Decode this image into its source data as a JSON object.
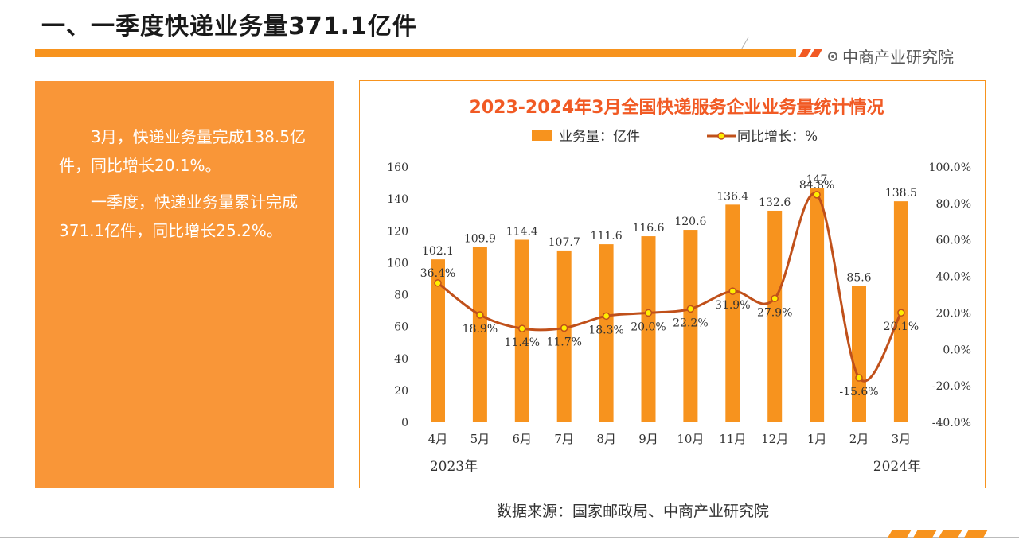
{
  "header": {
    "title": "一、一季度快递业务量371.1亿件",
    "brand": "中商产业研究院"
  },
  "summary": {
    "para1": "3月，快递业务量完成138.5亿件，同比增长20.1%。",
    "para2": "一季度，快递业务量累计完成371.1亿件，同比增长25.2%。"
  },
  "source": "数据来源：国家邮政局、中商产业研究院",
  "colors": {
    "accent": "#f7931e",
    "bar": "#f7931e",
    "line": "#c0501a",
    "marker_fill": "#ffee00",
    "title_color": "#f15a24"
  },
  "chart_data": {
    "type": "bar",
    "title": "2023-2024年3月全国快递服务企业业务量统计情况",
    "categories": [
      "4月",
      "5月",
      "6月",
      "7月",
      "8月",
      "9月",
      "10月",
      "11月",
      "12月",
      "1月",
      "2月",
      "3月"
    ],
    "year_labels": [
      {
        "label": "2023年",
        "category": "4月"
      },
      {
        "label": "2024年",
        "category": "3月"
      }
    ],
    "series": [
      {
        "name": "业务量：亿件",
        "type": "bar",
        "axis": "left",
        "values": [
          102.1,
          109.9,
          114.4,
          107.7,
          111.6,
          116.6,
          120.6,
          136.4,
          132.6,
          147,
          85.6,
          138.5
        ],
        "labels": [
          "102.1",
          "109.9",
          "114.4",
          "107.7",
          "111.6",
          "116.6",
          "120.6",
          "136.4",
          "132.6",
          "147",
          "85.6",
          "138.5"
        ]
      },
      {
        "name": "同比增长：%",
        "type": "line",
        "axis": "right",
        "values": [
          36.4,
          18.9,
          11.4,
          11.7,
          18.3,
          20.0,
          22.2,
          31.9,
          27.9,
          84.8,
          -15.6,
          20.1
        ],
        "labels": [
          "36.4%",
          "18.9%",
          "11.4%",
          "11.7%",
          "18.3%",
          "20.0%",
          "22.2%",
          "31.9%",
          "27.9%",
          "84.8%",
          "-15.6%",
          "20.1%"
        ]
      }
    ],
    "left_axis": {
      "ylim": [
        0,
        160
      ],
      "ticks": [
        0,
        20,
        40,
        60,
        80,
        100,
        120,
        140,
        160
      ],
      "tick_labels": [
        "0",
        "20",
        "40",
        "60",
        "80",
        "100",
        "120",
        "140",
        "160"
      ]
    },
    "right_axis": {
      "ylim": [
        -40,
        100
      ],
      "ticks": [
        -40,
        -20,
        0,
        20,
        40,
        60,
        80,
        100
      ],
      "tick_labels": [
        "-40.0%",
        "-20.0%",
        "0.0%",
        "20.0%",
        "40.0%",
        "60.0%",
        "80.0%",
        "100.0%"
      ]
    },
    "grid": false,
    "legend": "top"
  }
}
